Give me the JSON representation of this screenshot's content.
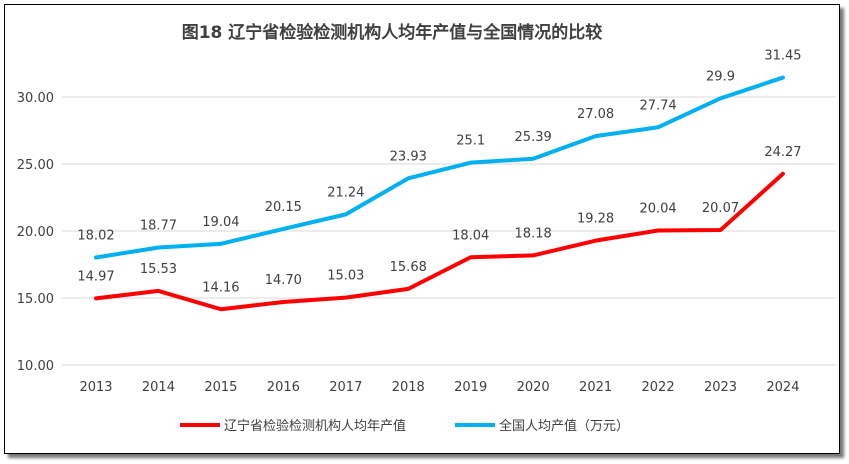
{
  "chart_data": {
    "type": "line",
    "title": "图18 辽宁省检验检测机构人均年产值与全国情况的比较",
    "categories": [
      "2013",
      "2014",
      "2015",
      "2016",
      "2017",
      "2018",
      "2019",
      "2020",
      "2021",
      "2022",
      "2023",
      "2024"
    ],
    "series": [
      {
        "name": "辽宁省检验检测机构人均年产值",
        "color": "#ff0000",
        "values": [
          14.97,
          15.53,
          14.16,
          14.7,
          15.03,
          15.68,
          18.04,
          18.18,
          19.28,
          20.04,
          20.07,
          24.27
        ],
        "labels": [
          "14.97",
          "15.53",
          "14.16",
          "14.70",
          "15.03",
          "15.68",
          "18.04",
          "18.18",
          "19.28",
          "20.04",
          "20.07",
          "24.27"
        ]
      },
      {
        "name": "全国人均产值（万元）",
        "color": "#00b0f0",
        "values": [
          18.02,
          18.77,
          19.04,
          20.15,
          21.24,
          23.93,
          25.1,
          25.39,
          27.08,
          27.74,
          29.9,
          31.45
        ],
        "labels": [
          "18.02",
          "18.77",
          "19.04",
          "20.15",
          "21.24",
          "23.93",
          "25.1",
          "25.39",
          "27.08",
          "27.74",
          "29.9",
          "31.45"
        ]
      }
    ],
    "yticks": [
      "10.00",
      "15.00",
      "20.00",
      "25.00",
      "30.00"
    ],
    "ylim": [
      10,
      32.6
    ],
    "grid": true,
    "legend": "bottom"
  }
}
